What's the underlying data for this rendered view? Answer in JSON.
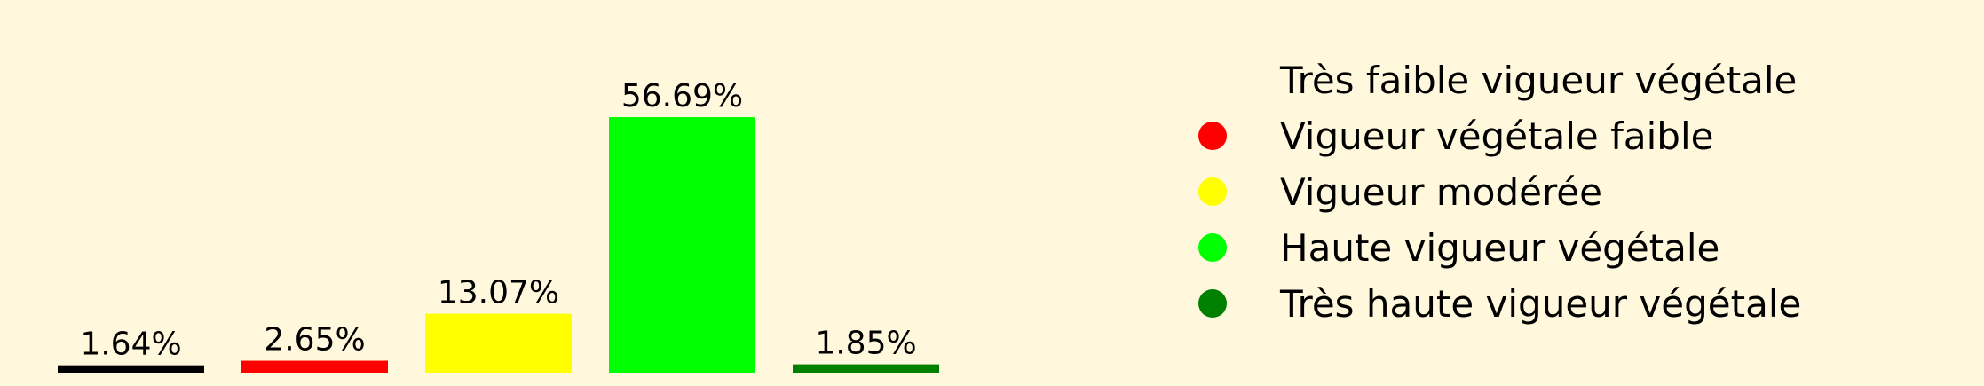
{
  "chart_data": {
    "type": "bar",
    "categories": [
      "Très faible vigueur végétale",
      "Vigueur végétale faible",
      "Vigueur modérée",
      "Haute vigueur végétale",
      "Très haute vigueur végétale"
    ],
    "values": [
      1.64,
      2.65,
      13.07,
      56.69,
      1.85
    ],
    "value_labels": [
      "1.64%",
      "2.65%",
      "13.07%",
      "56.69%",
      "1.85%"
    ],
    "colors": [
      "#000000",
      "#ff0000",
      "#ffff00",
      "#00ff00",
      "#008000"
    ],
    "ylim": [
      0,
      63
    ],
    "grid": false,
    "axes_visible": false,
    "legend_placement": "right",
    "background": "#fff8dc"
  },
  "legend": {
    "items": [
      {
        "label": "Très faible vigueur végétale",
        "color": "#000000",
        "marker_visible": false
      },
      {
        "label": "Vigueur végétale faible",
        "color": "#ff0000",
        "marker_visible": true
      },
      {
        "label": "Vigueur modérée",
        "color": "#ffff00",
        "marker_visible": true
      },
      {
        "label": "Haute vigueur végétale",
        "color": "#00ff00",
        "marker_visible": true
      },
      {
        "label": "Très haute vigueur végétale",
        "color": "#008000",
        "marker_visible": true
      }
    ]
  }
}
